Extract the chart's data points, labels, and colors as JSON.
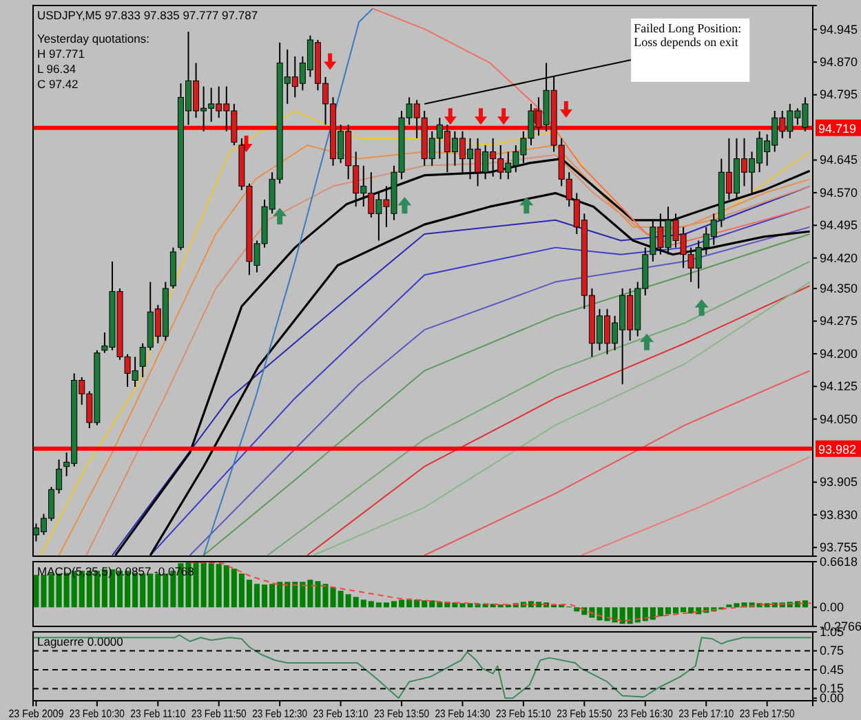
{
  "chart_data": [
    {
      "type": "candlestick",
      "title": "USDJPY,M5  97.833 97.835 97.777 97.787",
      "annotations": [
        "Yesterday quotations:",
        "H 97.771",
        "L 96.34",
        "C 97.42",
        {
          "text": "Failed Long Position: Loss depends on exit",
          "x": "2009-02-23T14:05",
          "y": 94.774
        }
      ],
      "xlim": [
        "2009-02-23T09:48",
        "2009-02-23T18:20"
      ],
      "tick_labels": "y",
      "ylim": [
        93.735,
        95.0
      ],
      "yticks": [
        94.945,
        {
          "value": 94.87,
          "label": "94.870"
        },
        94.795,
        94.645,
        {
          "value": 94.57,
          "label": "94.570"
        },
        94.495,
        {
          "value": 94.42,
          "label": "94.420"
        },
        {
          "value": 94.35,
          "label": "94.350"
        },
        94.275,
        {
          "value": 94.2,
          "label": "94.200"
        },
        94.125,
        {
          "value": 94.05,
          "label": "94.050"
        },
        93.905,
        {
          "value": 93.83,
          "label": "93.830"
        },
        93.755
      ],
      "ref_lines": [
        {
          "axis": "y",
          "value": 94.719,
          "label": "94.719",
          "color": "#ff0000"
        },
        {
          "axis": "y",
          "value": 93.982,
          "label": "93.982",
          "color": "#ff0000"
        }
      ],
      "x": [
        "2009-02-23T09:50",
        "2009-02-23T09:55",
        "2009-02-23T10:00",
        "2009-02-23T10:05",
        "2009-02-23T10:10",
        "2009-02-23T10:15",
        "2009-02-23T10:20",
        "2009-02-23T10:25",
        "2009-02-23T10:30",
        "2009-02-23T10:35",
        "2009-02-23T10:40",
        "2009-02-23T10:45",
        "2009-02-23T10:50",
        "2009-02-23T10:55",
        "2009-02-23T11:00",
        "2009-02-23T11:05",
        "2009-02-23T11:10",
        "2009-02-23T11:15",
        "2009-02-23T11:20",
        "2009-02-23T11:25",
        "2009-02-23T11:30",
        "2009-02-23T11:35",
        "2009-02-23T11:40",
        "2009-02-23T11:45",
        "2009-02-23T11:50",
        "2009-02-23T11:55",
        "2009-02-23T12:00",
        "2009-02-23T12:05",
        "2009-02-23T12:10",
        "2009-02-23T12:15",
        "2009-02-23T12:20",
        "2009-02-23T12:25",
        "2009-02-23T12:30",
        "2009-02-23T12:35",
        "2009-02-23T12:40",
        "2009-02-23T12:45",
        "2009-02-23T12:50",
        "2009-02-23T12:55",
        "2009-02-23T13:00",
        "2009-02-23T13:05",
        "2009-02-23T13:10",
        "2009-02-23T13:15",
        "2009-02-23T13:20",
        "2009-02-23T13:25",
        "2009-02-23T13:30",
        "2009-02-23T13:35",
        "2009-02-23T13:40",
        "2009-02-23T13:45",
        "2009-02-23T13:50",
        "2009-02-23T13:55",
        "2009-02-23T14:00",
        "2009-02-23T14:05",
        "2009-02-23T14:10",
        "2009-02-23T14:15",
        "2009-02-23T14:20",
        "2009-02-23T14:25",
        "2009-02-23T14:30",
        "2009-02-23T14:35",
        "2009-02-23T14:40",
        "2009-02-23T14:45",
        "2009-02-23T14:50",
        "2009-02-23T14:55",
        "2009-02-23T15:00",
        "2009-02-23T15:05",
        "2009-02-23T15:10",
        "2009-02-23T15:15",
        "2009-02-23T15:20",
        "2009-02-23T15:25",
        "2009-02-23T15:30",
        "2009-02-23T15:35",
        "2009-02-23T15:40",
        "2009-02-23T15:45",
        "2009-02-23T15:50",
        "2009-02-23T15:55",
        "2009-02-23T16:00",
        "2009-02-23T16:05",
        "2009-02-23T16:10",
        "2009-02-23T16:15",
        "2009-02-23T16:20",
        "2009-02-23T16:25",
        "2009-02-23T16:30",
        "2009-02-23T16:35",
        "2009-02-23T16:40",
        "2009-02-23T16:45",
        "2009-02-23T16:50",
        "2009-02-23T16:55",
        "2009-02-23T17:00",
        "2009-02-23T17:05",
        "2009-02-23T17:10",
        "2009-02-23T17:15",
        "2009-02-23T17:20",
        "2009-02-23T17:25",
        "2009-02-23T17:30",
        "2009-02-23T17:35",
        "2009-02-23T17:40",
        "2009-02-23T17:45",
        "2009-02-23T17:50",
        "2009-02-23T17:55",
        "2009-02-23T18:00",
        "2009-02-23T18:05",
        "2009-02-23T18:10",
        "2009-02-23T18:15"
      ],
      "ohlc": [
        [
          93.784,
          93.81,
          93.769,
          93.8
        ],
        [
          93.791,
          93.832,
          93.784,
          93.822
        ],
        [
          93.822,
          93.894,
          93.816,
          93.888
        ],
        [
          93.888,
          93.957,
          93.879,
          93.935
        ],
        [
          93.941,
          93.973,
          93.919,
          93.951
        ],
        [
          93.948,
          94.155,
          93.941,
          94.139
        ],
        [
          94.139,
          94.146,
          94.083,
          94.108
        ],
        [
          94.108,
          94.114,
          94.029,
          94.042
        ],
        [
          94.042,
          94.208,
          94.036,
          94.202
        ],
        [
          94.208,
          94.249,
          94.202,
          94.218
        ],
        [
          94.215,
          94.412,
          94.208,
          94.343
        ],
        [
          94.343,
          94.35,
          94.186,
          94.193
        ],
        [
          94.193,
          94.199,
          94.124,
          94.155
        ],
        [
          94.139,
          94.193,
          94.124,
          94.161
        ],
        [
          94.171,
          94.224,
          94.146,
          94.215
        ],
        [
          94.215,
          94.365,
          94.208,
          94.296
        ],
        [
          94.303,
          94.312,
          94.224,
          94.24
        ],
        [
          94.24,
          94.365,
          94.23,
          94.35
        ],
        [
          94.356,
          94.444,
          94.35,
          94.434
        ],
        [
          94.444,
          94.821,
          94.438,
          94.789
        ],
        [
          94.758,
          94.94,
          94.726,
          94.827
        ],
        [
          94.827,
          94.868,
          94.742,
          94.758
        ],
        [
          94.758,
          94.814,
          94.711,
          94.764
        ],
        [
          94.764,
          94.811,
          94.733,
          94.774
        ],
        [
          94.774,
          94.814,
          94.742,
          94.758
        ],
        [
          94.774,
          94.814,
          94.711,
          94.758
        ],
        [
          94.758,
          94.774,
          94.679,
          94.686
        ],
        [
          94.679,
          94.695,
          94.576,
          94.585
        ],
        [
          94.585,
          94.591,
          94.381,
          94.412
        ],
        [
          94.403,
          94.46,
          94.387,
          94.453
        ],
        [
          94.453,
          94.554,
          94.444,
          94.538
        ],
        [
          94.532,
          94.617,
          94.522,
          94.601
        ],
        [
          94.601,
          94.915,
          94.591,
          94.868
        ],
        [
          94.821,
          94.899,
          94.774,
          94.836
        ],
        [
          94.836,
          94.883,
          94.789,
          94.814
        ],
        [
          94.821,
          94.883,
          94.805,
          94.868
        ],
        [
          94.852,
          94.931,
          94.836,
          94.921
        ],
        [
          94.915,
          94.921,
          94.805,
          94.821
        ],
        [
          94.821,
          94.836,
          94.726,
          94.774
        ],
        [
          94.774,
          94.789,
          94.632,
          94.648
        ],
        [
          94.648,
          94.726,
          94.638,
          94.711
        ],
        [
          94.711,
          94.726,
          94.601,
          94.632
        ],
        [
          94.632,
          94.664,
          94.538,
          94.569
        ],
        [
          94.569,
          94.632,
          94.538,
          94.585
        ],
        [
          94.569,
          94.617,
          94.513,
          94.522
        ],
        [
          94.522,
          94.569,
          94.46,
          94.554
        ],
        [
          94.554,
          94.585,
          94.491,
          94.538
        ],
        [
          94.522,
          94.632,
          94.507,
          94.617
        ],
        [
          94.617,
          94.758,
          94.601,
          94.742
        ],
        [
          94.742,
          94.789,
          94.726,
          94.774
        ],
        [
          94.774,
          94.783,
          94.695,
          94.742
        ],
        [
          94.742,
          94.758,
          94.632,
          94.648
        ],
        [
          94.648,
          94.711,
          94.632,
          94.695
        ],
        [
          94.695,
          94.742,
          94.648,
          94.726
        ],
        [
          94.711,
          94.726,
          94.617,
          94.664
        ],
        [
          94.664,
          94.711,
          94.632,
          94.695
        ],
        [
          94.695,
          94.711,
          94.617,
          94.648
        ],
        [
          94.648,
          94.695,
          94.601,
          94.67
        ],
        [
          94.67,
          94.695,
          94.585,
          94.617
        ],
        [
          94.617,
          94.679,
          94.601,
          94.664
        ],
        [
          94.664,
          94.695,
          94.607,
          94.648
        ],
        [
          94.648,
          94.679,
          94.601,
          94.617
        ],
        [
          94.617,
          94.664,
          94.601,
          94.638
        ],
        [
          94.632,
          94.679,
          94.617,
          94.664
        ],
        [
          94.657,
          94.711,
          94.638,
          94.695
        ],
        [
          94.695,
          94.774,
          94.679,
          94.758
        ],
        [
          94.758,
          94.789,
          94.701,
          94.72
        ],
        [
          94.726,
          94.868,
          94.711,
          94.805
        ],
        [
          94.805,
          94.836,
          94.664,
          94.679
        ],
        [
          94.679,
          94.695,
          94.585,
          94.601
        ],
        [
          94.601,
          94.617,
          94.538,
          94.554
        ],
        [
          94.554,
          94.569,
          94.475,
          94.491
        ],
        [
          94.507,
          94.522,
          94.303,
          94.334
        ],
        [
          94.334,
          94.35,
          94.193,
          94.224
        ],
        [
          94.224,
          94.303,
          94.208,
          94.287
        ],
        [
          94.287,
          94.303,
          94.199,
          94.224
        ],
        [
          94.224,
          94.287,
          94.208,
          94.271
        ],
        [
          94.255,
          94.35,
          94.13,
          94.334
        ],
        [
          94.334,
          94.35,
          94.23,
          94.255
        ],
        [
          94.255,
          94.365,
          94.24,
          94.35
        ],
        [
          94.35,
          94.444,
          94.334,
          94.428
        ],
        [
          94.428,
          94.507,
          94.412,
          94.491
        ],
        [
          94.491,
          94.522,
          94.428,
          94.444
        ],
        [
          94.444,
          94.538,
          94.428,
          94.507
        ],
        [
          94.507,
          94.522,
          94.444,
          94.46
        ],
        [
          94.475,
          94.491,
          94.397,
          94.428
        ],
        [
          94.428,
          94.444,
          94.365,
          94.397
        ],
        [
          94.397,
          94.46,
          94.35,
          94.444
        ],
        [
          94.444,
          94.491,
          94.428,
          94.475
        ],
        [
          94.469,
          94.522,
          94.45,
          94.507
        ],
        [
          94.507,
          94.648,
          94.491,
          94.617
        ],
        [
          94.617,
          94.695,
          94.554,
          94.569
        ],
        [
          94.569,
          94.695,
          94.554,
          94.648
        ],
        [
          94.648,
          94.695,
          94.585,
          94.617
        ],
        [
          94.617,
          94.664,
          94.569,
          94.648
        ],
        [
          94.638,
          94.711,
          94.617,
          94.695
        ],
        [
          94.664,
          94.704,
          94.632,
          94.689
        ],
        [
          94.679,
          94.758,
          94.664,
          94.742
        ],
        [
          94.742,
          94.758,
          94.695,
          94.711
        ],
        [
          94.711,
          94.774,
          94.695,
          94.758
        ],
        [
          94.742,
          94.764,
          94.726,
          94.758
        ],
        [
          94.72,
          94.789,
          94.711,
          94.774
        ]
      ],
      "series": [
        {
          "type": "line",
          "color": "#e03030",
          "x": [
            "2009-02-23T12:48",
            "2009-02-23T14:05",
            "2009-02-23T15:31",
            "2009-02-23T16:56",
            "2009-02-23T18:18"
          ],
          "values": [
            93.737,
            93.941,
            94.098,
            94.224,
            94.356
          ]
        },
        {
          "type": "line",
          "color": "#e85858",
          "x": [
            "2009-02-23T14:05",
            "2009-02-23T15:31",
            "2009-02-23T16:56",
            "2009-02-23T18:18"
          ],
          "values": [
            93.737,
            93.879,
            94.036,
            94.161
          ]
        },
        {
          "type": "line",
          "color": "#f07878",
          "x": [
            "2009-02-23T15:48",
            "2009-02-23T17:05",
            "2009-02-23T18:18"
          ],
          "values": [
            93.737,
            93.847,
            93.963
          ]
        },
        {
          "type": "line",
          "color": "#5a9a5a",
          "x": [
            "2009-02-23T11:40",
            "2009-02-23T12:40",
            "2009-02-23T14:05",
            "2009-02-23T15:31",
            "2009-02-23T16:56",
            "2009-02-23T18:18"
          ],
          "values": [
            93.737,
            93.91,
            94.161,
            94.287,
            94.381,
            94.475
          ]
        },
        {
          "type": "line",
          "color": "#70a870",
          "x": [
            "2009-02-23T12:22",
            "2009-02-23T14:05",
            "2009-02-23T15:31",
            "2009-02-23T16:56",
            "2009-02-23T18:18"
          ],
          "values": [
            93.737,
            94.004,
            94.161,
            94.271,
            94.412
          ]
        },
        {
          "type": "line",
          "color": "#88b888",
          "x": [
            "2009-02-23T12:52",
            "2009-02-23T14:05",
            "2009-02-23T15:31",
            "2009-02-23T16:56",
            "2009-02-23T18:18"
          ],
          "values": [
            93.737,
            93.847,
            94.036,
            94.177,
            94.365
          ]
        },
        {
          "type": "line",
          "color": "#2828b0",
          "x": [
            "2009-02-23T10:40",
            "2009-02-23T11:57",
            "2009-02-23T13:22",
            "2009-02-23T14:05",
            "2009-02-23T15:31",
            "2009-02-23T16:14",
            "2009-02-23T16:56",
            "2009-02-23T18:18"
          ],
          "values": [
            93.737,
            94.098,
            94.35,
            94.475,
            94.507,
            94.46,
            94.475,
            94.585
          ]
        },
        {
          "type": "line",
          "color": "#3a3ac8",
          "x": [
            "2009-02-23T11:05",
            "2009-02-23T12:40",
            "2009-02-23T14:05",
            "2009-02-23T15:31",
            "2009-02-23T16:14",
            "2009-02-23T16:56",
            "2009-02-23T18:18"
          ],
          "values": [
            93.737,
            94.098,
            94.381,
            94.444,
            94.428,
            94.444,
            94.538
          ]
        },
        {
          "type": "line",
          "color": "#5858c0",
          "x": [
            "2009-02-23T11:31",
            "2009-02-23T13:22",
            "2009-02-23T14:05",
            "2009-02-23T15:31",
            "2009-02-23T16:56",
            "2009-02-23T18:18"
          ],
          "values": [
            93.737,
            94.13,
            94.255,
            94.365,
            94.412,
            94.491
          ]
        },
        {
          "type": "line",
          "color": "#f0c830",
          "x": [
            "2009-02-23T09:53",
            "2009-02-23T10:23",
            "2009-02-23T10:57",
            "2009-02-23T11:23",
            "2009-02-23T11:57",
            "2009-02-23T12:40",
            "2009-02-23T13:22",
            "2009-02-23T14:05",
            "2009-02-23T14:48",
            "2009-02-23T15:31",
            "2009-02-23T15:56",
            "2009-02-23T16:31",
            "2009-02-23T17:14",
            "2009-02-23T18:18"
          ],
          "values": [
            93.737,
            93.941,
            94.13,
            94.381,
            94.664,
            94.758,
            94.695,
            94.695,
            94.679,
            94.711,
            94.601,
            94.475,
            94.507,
            94.664
          ]
        },
        {
          "type": "line",
          "color": "#e89048",
          "x": [
            "2009-02-23T10:05",
            "2009-02-23T10:40",
            "2009-02-23T11:14",
            "2009-02-23T11:48",
            "2009-02-23T12:14",
            "2009-02-23T12:48",
            "2009-02-23T13:22",
            "2009-02-23T14:05",
            "2009-02-23T14:48",
            "2009-02-23T15:31",
            "2009-02-23T15:56",
            "2009-02-23T16:22",
            "2009-02-23T16:56",
            "2009-02-23T17:48",
            "2009-02-23T18:18"
          ],
          "values": [
            93.737,
            93.973,
            94.224,
            94.475,
            94.601,
            94.679,
            94.648,
            94.664,
            94.657,
            94.679,
            94.585,
            94.491,
            94.491,
            94.569,
            94.601
          ]
        },
        {
          "type": "line",
          "color": "#d89070",
          "x": [
            "2009-02-23T10:23",
            "2009-02-23T11:14",
            "2009-02-23T11:48",
            "2009-02-23T12:22",
            "2009-02-23T13:05",
            "2009-02-23T14:05",
            "2009-02-23T14:48",
            "2009-02-23T15:31",
            "2009-02-23T15:56",
            "2009-02-23T16:31",
            "2009-02-23T17:14",
            "2009-02-23T18:18"
          ],
          "values": [
            93.737,
            94.098,
            94.35,
            94.507,
            94.585,
            94.632,
            94.638,
            94.657,
            94.569,
            94.475,
            94.507,
            94.585
          ]
        },
        {
          "type": "line",
          "color": "#000000",
          "x": [
            "2009-02-23T10:42",
            "2009-02-23T11:31",
            "2009-02-23T12:05",
            "2009-02-23T12:40",
            "2009-02-23T13:14",
            "2009-02-23T14:05",
            "2009-02-23T14:48",
            "2009-02-23T15:14",
            "2009-02-23T15:35",
            "2009-02-23T15:56",
            "2009-02-23T16:22",
            "2009-02-23T16:48",
            "2009-02-23T17:14",
            "2009-02-23T17:48",
            "2009-02-23T18:18"
          ],
          "values": [
            93.737,
            93.973,
            94.309,
            94.444,
            94.544,
            94.61,
            94.617,
            94.638,
            94.648,
            94.585,
            94.507,
            94.507,
            94.538,
            94.576,
            94.62
          ]
        },
        {
          "type": "line",
          "color": "#000000",
          "x": [
            "2009-02-23T11:05",
            "2009-02-23T11:40",
            "2009-02-23T12:16",
            "2009-02-23T13:08",
            "2009-02-23T14:05",
            "2009-02-23T14:48",
            "2009-02-23T15:31",
            "2009-02-23T15:56",
            "2009-02-23T16:22",
            "2009-02-23T16:48",
            "2009-02-23T17:14",
            "2009-02-23T17:48",
            "2009-02-23T18:18"
          ],
          "values": [
            93.737,
            93.941,
            94.171,
            94.403,
            94.497,
            94.538,
            94.569,
            94.538,
            94.46,
            94.428,
            94.444,
            94.469,
            94.481
          ]
        },
        {
          "type": "line",
          "color": "#3a7cc0",
          "x": [
            "2009-02-23T11:40",
            "2009-02-23T12:14",
            "2009-02-23T12:40",
            "2009-02-23T13:08",
            "2009-02-23T13:22",
            "2009-02-23T13:31"
          ],
          "values": [
            93.737,
            94.098,
            94.412,
            94.78,
            94.962,
            94.993
          ]
        },
        {
          "type": "line",
          "color": "#f07060",
          "x": [
            "2009-02-23T13:31",
            "2009-02-23T14:05",
            "2009-02-23T14:48",
            "2009-02-23T15:22",
            "2009-02-23T15:48",
            "2009-02-23T16:14",
            "2009-02-23T16:31",
            "2009-02-23T16:48",
            "2009-02-23T17:14",
            "2009-02-23T17:48",
            "2009-02-23T18:18"
          ],
          "values": [
            94.993,
            94.946,
            94.868,
            94.758,
            94.632,
            94.538,
            94.475,
            94.45,
            94.475,
            94.507,
            94.538
          ]
        }
      ]
    },
    {
      "type": "bar",
      "title": "MACD(5,35,5) 0.0857 -0.0768",
      "xlim": [
        "2009-02-23T09:48",
        "2009-02-23T18:20"
      ],
      "tick_labels": "y",
      "ylim": [
        -0.2766,
        0.6618
      ],
      "yticks": [
        0.6618,
        {
          "value": 0,
          "label": "0.00"
        },
        -0.2766
      ],
      "line_style": "dashed",
      "x": [
        "2009-02-23T09:50",
        "2009-02-23T09:55",
        "2009-02-23T10:00",
        "2009-02-23T10:05",
        "2009-02-23T10:10",
        "2009-02-23T10:15",
        "2009-02-23T10:20",
        "2009-02-23T10:25",
        "2009-02-23T10:30",
        "2009-02-23T10:35",
        "2009-02-23T10:40",
        "2009-02-23T10:45",
        "2009-02-23T10:50",
        "2009-02-23T10:55",
        "2009-02-23T11:00",
        "2009-02-23T11:05",
        "2009-02-23T11:10",
        "2009-02-23T11:15",
        "2009-02-23T11:20",
        "2009-02-23T11:25",
        "2009-02-23T11:30",
        "2009-02-23T11:35",
        "2009-02-23T11:40",
        "2009-02-23T11:45",
        "2009-02-23T11:50",
        "2009-02-23T11:55",
        "2009-02-23T12:00",
        "2009-02-23T12:05",
        "2009-02-23T12:10",
        "2009-02-23T12:15",
        "2009-02-23T12:20",
        "2009-02-23T12:25",
        "2009-02-23T12:30",
        "2009-02-23T12:35",
        "2009-02-23T12:40",
        "2009-02-23T12:45",
        "2009-02-23T12:50",
        "2009-02-23T12:55",
        "2009-02-23T13:00",
        "2009-02-23T13:05",
        "2009-02-23T13:10",
        "2009-02-23T13:15",
        "2009-02-23T13:20",
        "2009-02-23T13:25",
        "2009-02-23T13:30",
        "2009-02-23T13:35",
        "2009-02-23T13:40",
        "2009-02-23T13:45",
        "2009-02-23T13:50",
        "2009-02-23T13:55",
        "2009-02-23T14:00",
        "2009-02-23T14:05",
        "2009-02-23T14:10",
        "2009-02-23T14:15",
        "2009-02-23T14:20",
        "2009-02-23T14:25",
        "2009-02-23T14:30",
        "2009-02-23T14:35",
        "2009-02-23T14:40",
        "2009-02-23T14:45",
        "2009-02-23T14:50",
        "2009-02-23T14:55",
        "2009-02-23T15:00",
        "2009-02-23T15:05",
        "2009-02-23T15:10",
        "2009-02-23T15:15",
        "2009-02-23T15:20",
        "2009-02-23T15:25",
        "2009-02-23T15:30",
        "2009-02-23T15:35",
        "2009-02-23T15:40",
        "2009-02-23T15:45",
        "2009-02-23T15:50",
        "2009-02-23T15:55",
        "2009-02-23T16:00",
        "2009-02-23T16:05",
        "2009-02-23T16:10",
        "2009-02-23T16:15",
        "2009-02-23T16:20",
        "2009-02-23T16:25",
        "2009-02-23T16:30",
        "2009-02-23T16:35",
        "2009-02-23T16:40",
        "2009-02-23T16:45",
        "2009-02-23T16:50",
        "2009-02-23T16:55",
        "2009-02-23T17:00",
        "2009-02-23T17:05",
        "2009-02-23T17:10",
        "2009-02-23T17:15",
        "2009-02-23T17:20",
        "2009-02-23T17:25",
        "2009-02-23T17:30",
        "2009-02-23T17:35",
        "2009-02-23T17:40",
        "2009-02-23T17:45",
        "2009-02-23T17:50",
        "2009-02-23T17:55",
        "2009-02-23T18:00",
        "2009-02-23T18:05",
        "2009-02-23T18:10",
        "2009-02-23T18:15"
      ],
      "series": [
        {
          "type": "bar",
          "color": "#008000",
          "values": [
            0.47,
            0.47,
            0.49,
            0.49,
            0.5,
            0.53,
            0.53,
            0.53,
            0.53,
            0.55,
            0.55,
            0.53,
            0.53,
            0.5,
            0.49,
            0.49,
            0.49,
            0.49,
            0.53,
            0.64,
            0.65,
            0.65,
            0.65,
            0.64,
            0.63,
            0.61,
            0.56,
            0.49,
            0.4,
            0.34,
            0.33,
            0.34,
            0.37,
            0.37,
            0.37,
            0.37,
            0.4,
            0.38,
            0.34,
            0.29,
            0.24,
            0.19,
            0.15,
            0.11,
            0.09,
            0.07,
            0.07,
            0.09,
            0.11,
            0.11,
            0.11,
            0.1,
            0.1,
            0.08,
            0.08,
            0.07,
            0.06,
            0.06,
            0.05,
            0.05,
            0.05,
            0.04,
            0.04,
            0.06,
            0.08,
            0.09,
            0.08,
            0.07,
            0.04,
            0.04,
            0.01,
            -0.06,
            -0.11,
            -0.15,
            -0.19,
            -0.2,
            -0.22,
            -0.24,
            -0.24,
            -0.22,
            -0.2,
            -0.18,
            -0.13,
            -0.1,
            -0.09,
            -0.07,
            -0.09,
            -0.1,
            -0.08,
            -0.06,
            -0.03,
            0.04,
            0.06,
            0.07,
            0.07,
            0.06,
            0.06,
            0.07,
            0.07,
            0.08,
            0.09,
            0.1
          ]
        },
        {
          "type": "line",
          "color": "#ff4040",
          "x": [
            "2009-02-23T11:31",
            "2009-02-23T11:52",
            "2009-02-23T12:12",
            "2009-02-23T12:29",
            "2009-02-23T13:00",
            "2009-02-23T13:48",
            "2009-02-23T14:22",
            "2009-02-23T14:57",
            "2009-02-23T15:41",
            "2009-02-23T15:58",
            "2009-02-23T16:15",
            "2009-02-23T16:39",
            "2009-02-23T17:14",
            "2009-02-23T17:48",
            "2009-02-23T18:19"
          ],
          "values": [
            0.65,
            0.64,
            0.44,
            0.33,
            0.31,
            0.13,
            0.07,
            0.04,
            0.04,
            -0.11,
            -0.2,
            -0.13,
            -0.04,
            0.04,
            0.06
          ]
        }
      ]
    },
    {
      "type": "line",
      "title": "Laguerre 0.0000",
      "xlim": [
        "2009-02-23T09:48",
        "2009-02-23T18:20"
      ],
      "xticks": [
        {
          "value": "2009-02-23T09:50",
          "label": "23 Feb 2009"
        },
        {
          "value": "2009-02-23T10:30",
          "label": "23 Feb 10:30"
        },
        {
          "value": "2009-02-23T11:10",
          "label": "23 Feb 11:10"
        },
        {
          "value": "2009-02-23T11:50",
          "label": "23 Feb 11:50"
        },
        {
          "value": "2009-02-23T12:30",
          "label": "23 Feb 12:30"
        },
        {
          "value": "2009-02-23T13:10",
          "label": "23 Feb 13:10"
        },
        {
          "value": "2009-02-23T13:50",
          "label": "23 Feb 13:50"
        },
        {
          "value": "2009-02-23T14:30",
          "label": "23 Feb 14:30"
        },
        {
          "value": "2009-02-23T15:10",
          "label": "23 Feb 15:10"
        },
        {
          "value": "2009-02-23T15:50",
          "label": "23 Feb 15:50"
        },
        {
          "value": "2009-02-23T16:30",
          "label": "23 Feb 16:30"
        },
        {
          "value": "2009-02-23T17:10",
          "label": "23 Feb 17:10"
        },
        {
          "value": "2009-02-23T17:50",
          "label": "23 Feb 17:50"
        }
      ],
      "ylim": [
        -0.04,
        1.05
      ],
      "yticks": [
        1.05,
        0.75,
        0.45,
        0.15,
        {
          "value": 0,
          "label": "0.00"
        }
      ],
      "ref_lines": [
        {
          "axis": "y",
          "value": 0.75,
          "line_style": "dashed",
          "color": "#000000"
        },
        {
          "axis": "y",
          "value": 0.45,
          "line_style": "dashed",
          "color": "#000000"
        },
        {
          "axis": "y",
          "value": 0.15,
          "line_style": "dashed",
          "color": "#000000"
        }
      ],
      "series": [
        {
          "color": "#3c8c5a",
          "x": [
            "2009-02-23T09:48",
            "2009-02-23T11:21",
            "2009-02-23T11:24",
            "2009-02-23T11:31",
            "2009-02-23T11:38",
            "2009-02-23T11:45",
            "2009-02-23T11:57",
            "2009-02-23T12:05",
            "2009-02-23T12:10",
            "2009-02-23T12:18",
            "2009-02-23T12:27",
            "2009-02-23T12:35",
            "2009-02-23T12:44",
            "2009-02-23T13:05",
            "2009-02-23T13:21",
            "2009-02-23T13:34",
            "2009-02-23T13:48",
            "2009-02-23T13:55",
            "2009-02-23T14:09",
            "2009-02-23T14:19",
            "2009-02-23T14:29",
            "2009-02-23T14:33",
            "2009-02-23T14:39",
            "2009-02-23T14:43",
            "2009-02-23T14:50",
            "2009-02-23T14:53",
            "2009-02-23T14:58",
            "2009-02-23T15:03",
            "2009-02-23T15:14",
            "2009-02-23T15:21",
            "2009-02-23T15:27",
            "2009-02-23T15:44",
            "2009-02-23T15:48",
            "2009-02-23T16:05",
            "2009-02-23T16:15",
            "2009-02-23T16:29",
            "2009-02-23T16:39",
            "2009-02-23T16:53",
            "2009-02-23T17:03",
            "2009-02-23T17:07",
            "2009-02-23T17:14",
            "2009-02-23T17:20",
            "2009-02-23T17:24",
            "2009-02-23T17:31",
            "2009-02-23T17:34",
            "2009-02-23T18:19"
          ],
          "values": [
            0.96,
            0.96,
            1.0,
            0.9,
            0.96,
            0.92,
            0.96,
            0.94,
            0.81,
            0.69,
            0.6,
            0.56,
            0.56,
            0.56,
            0.56,
            0.3,
            0.0,
            0.26,
            0.34,
            0.47,
            0.6,
            0.73,
            0.6,
            0.47,
            0.39,
            0.51,
            0.0,
            0.0,
            0.21,
            0.6,
            0.64,
            0.56,
            0.47,
            0.26,
            0.04,
            0.02,
            0.17,
            0.34,
            0.51,
            0.96,
            0.94,
            0.86,
            0.9,
            0.94,
            0.96,
            0.96
          ]
        }
      ]
    }
  ]
}
